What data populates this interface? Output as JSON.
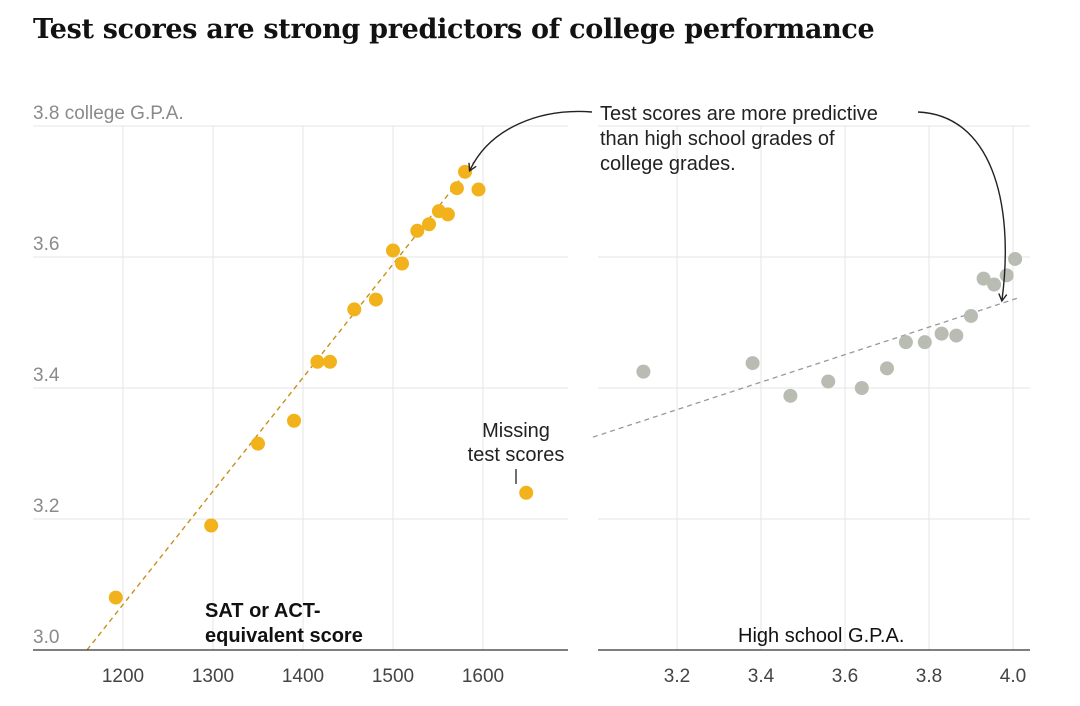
{
  "title": "Test scores are strong predictors of college performance",
  "chart_data": [
    {
      "type": "scatter",
      "name": "test-scores",
      "color": "#f2b21b",
      "ylabel": "college G.P.A.",
      "xlabel": [
        "SAT or ACT-",
        "equivalent score"
      ],
      "xlim": [
        1140,
        1700
      ],
      "ylim": [
        3.0,
        3.8
      ],
      "xticks": [
        "1200",
        "1300",
        "1400",
        "1500",
        "1600"
      ],
      "yticks": [
        "3.0",
        "3.2",
        "3.4",
        "3.6"
      ],
      "ytick_top": "3.8",
      "points": [
        [
          1192,
          3.08
        ],
        [
          1298,
          3.19
        ],
        [
          1350,
          3.315
        ],
        [
          1390,
          3.35
        ],
        [
          1416,
          3.44
        ],
        [
          1430,
          3.44
        ],
        [
          1457,
          3.52
        ],
        [
          1481,
          3.535
        ],
        [
          1500,
          3.61
        ],
        [
          1510,
          3.59
        ],
        [
          1527,
          3.64
        ],
        [
          1540,
          3.65
        ],
        [
          1551,
          3.67
        ],
        [
          1561,
          3.665
        ],
        [
          1571,
          3.705
        ],
        [
          1580,
          3.73
        ],
        [
          1595,
          3.703
        ]
      ],
      "trendline": [
        [
          1160,
          3.0
        ],
        [
          1590,
          3.745
        ]
      ],
      "outlier": [
        1648,
        3.24
      ],
      "outlier_label": [
        "Missing",
        "test scores"
      ]
    },
    {
      "type": "scatter",
      "name": "high-school-gpa",
      "color": "#b9bcb2",
      "xlabel": "High school G.P.A.",
      "xlim": [
        3.0,
        4.03
      ],
      "ylim": [
        3.0,
        3.8
      ],
      "xticks": [
        "3.2",
        "3.4",
        "3.6",
        "3.8",
        "4.0"
      ],
      "points": [
        [
          3.12,
          3.425
        ],
        [
          3.38,
          3.438
        ],
        [
          3.47,
          3.388
        ],
        [
          3.56,
          3.41
        ],
        [
          3.64,
          3.4
        ],
        [
          3.7,
          3.43
        ],
        [
          3.745,
          3.47
        ],
        [
          3.79,
          3.47
        ],
        [
          3.83,
          3.483
        ],
        [
          3.865,
          3.48
        ],
        [
          3.9,
          3.51
        ],
        [
          3.93,
          3.567
        ],
        [
          3.955,
          3.558
        ],
        [
          3.985,
          3.572
        ],
        [
          4.005,
          3.597
        ]
      ],
      "trendline": [
        [
          3.0,
          3.325
        ],
        [
          4.01,
          3.537
        ]
      ]
    }
  ],
  "annotation": [
    "Test scores are more predictive",
    "than high school grades of",
    "college grades."
  ]
}
